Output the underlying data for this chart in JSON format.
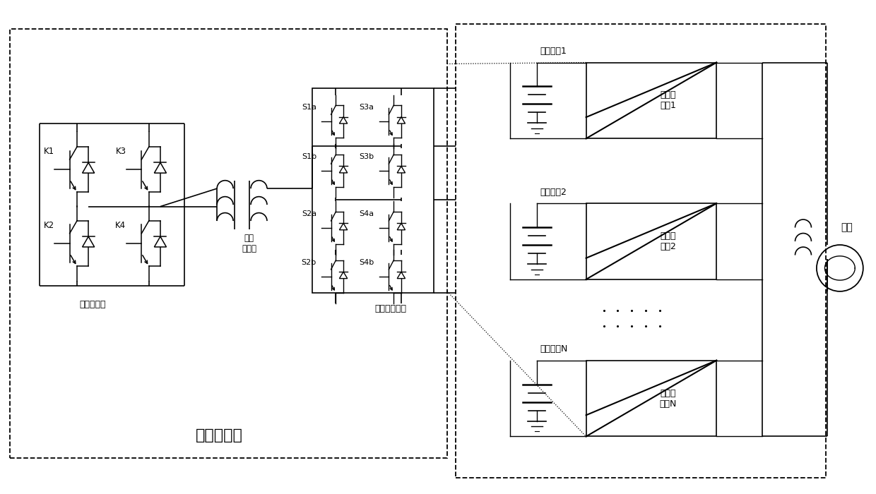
{
  "bg_color": "#ffffff",
  "line_color": "#000000",
  "text_color": "#000000",
  "fig_width": 12.4,
  "fig_height": 7.0,
  "hf_unit_label": "高频链单元",
  "front_inverter_label": "前级逆变器",
  "matrix_converter_label": "矩阵式变换器",
  "transformer_label": "高频\n变压器",
  "dc_source_labels": [
    "直流电源1",
    "直流电源2",
    "直流电源N"
  ],
  "hf_unit_labels": [
    "高频链\n单元1",
    "高频链\n单元2",
    "高频链\n单元N"
  ],
  "grid_label": "电网",
  "switch_labels_left": [
    "K1",
    "K2",
    "K3",
    "K4"
  ],
  "switch_labels_matrix": [
    "S1a",
    "S1b",
    "S2a",
    "S2b",
    "S3a",
    "S3b",
    "S4a",
    "S4b"
  ]
}
